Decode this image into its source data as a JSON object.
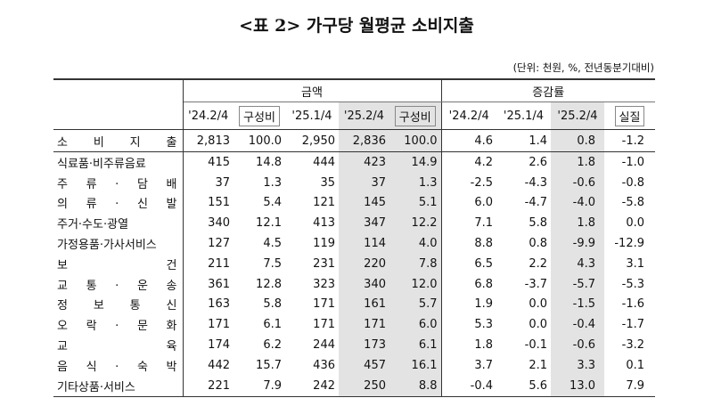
{
  "title": "<표 2> 가구당 월평균 소비지출",
  "unit": "(단위: 천원, %, 전년동분기대비)",
  "table": {
    "groups": [
      "금액",
      "증감률"
    ],
    "columns": [
      "'24.2/4",
      "구성비",
      "'25.1/4",
      "'25.2/4",
      "구성비",
      "'24.2/4",
      "'25.1/4",
      "'25.2/4",
      "실질"
    ],
    "rows": [
      {
        "label": "소 비 지 출",
        "cells": [
          "2,813",
          "100.0",
          "2,950",
          "2,836",
          "100.0",
          "4.6",
          "1.4",
          "0.8",
          "-1.2"
        ]
      },
      {
        "label": "식료품·비주류음료",
        "cells": [
          "415",
          "14.8",
          "444",
          "423",
          "14.9",
          "4.2",
          "2.6",
          "1.8",
          "-1.0"
        ]
      },
      {
        "label": "주 류 · 담 배",
        "cells": [
          "37",
          "1.3",
          "35",
          "37",
          "1.3",
          "-2.5",
          "-4.3",
          "-0.6",
          "-0.8"
        ]
      },
      {
        "label": "의 류 · 신 발",
        "cells": [
          "151",
          "5.4",
          "121",
          "145",
          "5.1",
          "6.0",
          "-4.7",
          "-4.0",
          "-5.8"
        ]
      },
      {
        "label": "주거·수도·광열",
        "cells": [
          "340",
          "12.1",
          "413",
          "347",
          "12.2",
          "7.1",
          "5.8",
          "1.8",
          "0.0"
        ]
      },
      {
        "label": "가정용품·가사서비스",
        "cells": [
          "127",
          "4.5",
          "119",
          "114",
          "4.0",
          "8.8",
          "0.8",
          "-9.9",
          "-12.9"
        ]
      },
      {
        "label": "보 건",
        "cells": [
          "211",
          "7.5",
          "231",
          "220",
          "7.8",
          "6.5",
          "2.2",
          "4.3",
          "3.1"
        ]
      },
      {
        "label": "교 통 · 운 송",
        "cells": [
          "361",
          "12.8",
          "323",
          "340",
          "12.0",
          "6.8",
          "-3.7",
          "-5.7",
          "-5.3"
        ]
      },
      {
        "label": "정 보 통 신",
        "cells": [
          "163",
          "5.8",
          "171",
          "161",
          "5.7",
          "1.9",
          "0.0",
          "-1.5",
          "-1.6"
        ]
      },
      {
        "label": "오 락 · 문 화",
        "cells": [
          "171",
          "6.1",
          "171",
          "171",
          "6.0",
          "5.3",
          "0.0",
          "-0.4",
          "-1.7"
        ]
      },
      {
        "label": "교 육",
        "cells": [
          "174",
          "6.2",
          "244",
          "173",
          "6.1",
          "1.8",
          "-0.1",
          "-0.6",
          "-3.2"
        ]
      },
      {
        "label": "음 식 · 숙 박",
        "cells": [
          "442",
          "15.7",
          "436",
          "457",
          "16.1",
          "3.7",
          "2.1",
          "3.3",
          "0.1"
        ]
      },
      {
        "label": "기타상품·서비스",
        "cells": [
          "221",
          "7.9",
          "242",
          "250",
          "8.8",
          "-0.4",
          "5.6",
          "13.0",
          "7.9"
        ]
      }
    ]
  }
}
